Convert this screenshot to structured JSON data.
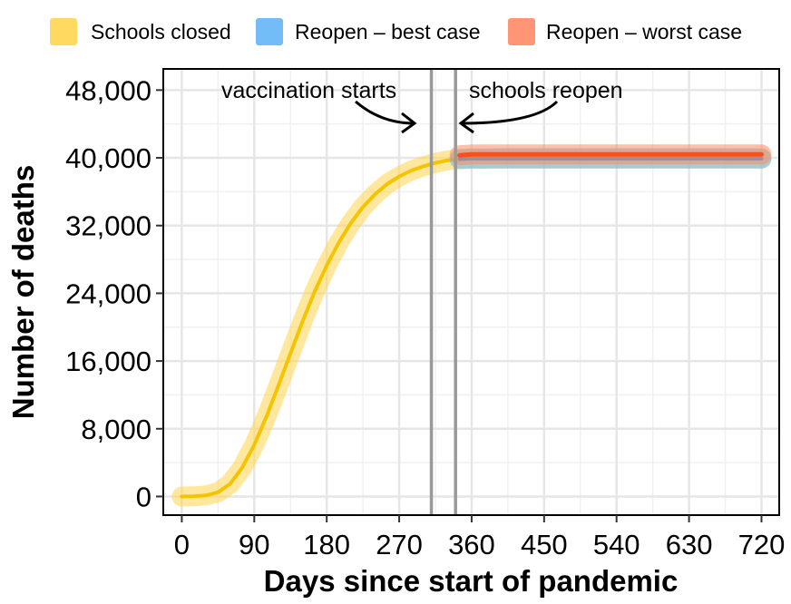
{
  "chart_data": {
    "type": "line",
    "title": "",
    "xlabel": "Days since start of pandemic",
    "ylabel": "Number of deaths",
    "xlim": [
      -23,
      742
    ],
    "ylim": [
      -2200,
      50500
    ],
    "x_ticks": [
      0,
      90,
      180,
      270,
      360,
      450,
      540,
      630,
      720
    ],
    "x_tick_labels": [
      "0",
      "90",
      "180",
      "270",
      "360",
      "450",
      "540",
      "630",
      "720"
    ],
    "y_ticks": [
      0,
      8000,
      16000,
      24000,
      32000,
      40000,
      48000
    ],
    "y_tick_labels": [
      "0",
      "8,000",
      "16,000",
      "24,000",
      "32,000",
      "40,000",
      "48,000"
    ],
    "grid": true,
    "legend_position": "top",
    "series": [
      {
        "name": "Schools closed",
        "color": "#F5C400",
        "band_color": "#FFD54F",
        "x": [
          0,
          15,
          30,
          45,
          60,
          75,
          90,
          105,
          120,
          135,
          150,
          165,
          180,
          195,
          210,
          225,
          240,
          255,
          270,
          285,
          300,
          315,
          330,
          345,
          360,
          400,
          450,
          500,
          550,
          600,
          650,
          700,
          720
        ],
        "values": [
          0,
          20,
          120,
          500,
          1500,
          3400,
          6100,
          9400,
          13100,
          16900,
          20700,
          24200,
          27300,
          30000,
          32300,
          34200,
          35700,
          36900,
          37800,
          38500,
          39000,
          39400,
          39700,
          39850,
          39950,
          40000,
          40000,
          40000,
          40000,
          40000,
          40000,
          40000,
          40000
        ]
      },
      {
        "name": "Reopen – best case",
        "color": "#2E8FE0",
        "band_color": "#64B5F6",
        "x": [
          345,
          360,
          400,
          450,
          500,
          550,
          600,
          650,
          700,
          720
        ],
        "values": [
          39850,
          39900,
          39900,
          39900,
          39900,
          39900,
          39900,
          39900,
          39900,
          39900
        ]
      },
      {
        "name": "Reopen – worst case",
        "color": "#F4511E",
        "band_color": "#FF8A65",
        "x": [
          345,
          360,
          400,
          450,
          500,
          550,
          600,
          650,
          700,
          720
        ],
        "values": [
          40300,
          40400,
          40400,
          40400,
          40400,
          40400,
          40400,
          40400,
          40400,
          40400
        ]
      }
    ],
    "vertical_lines": [
      {
        "x": 310,
        "label": "vaccination starts"
      },
      {
        "x": 340,
        "label": "schools reopen"
      }
    ]
  }
}
